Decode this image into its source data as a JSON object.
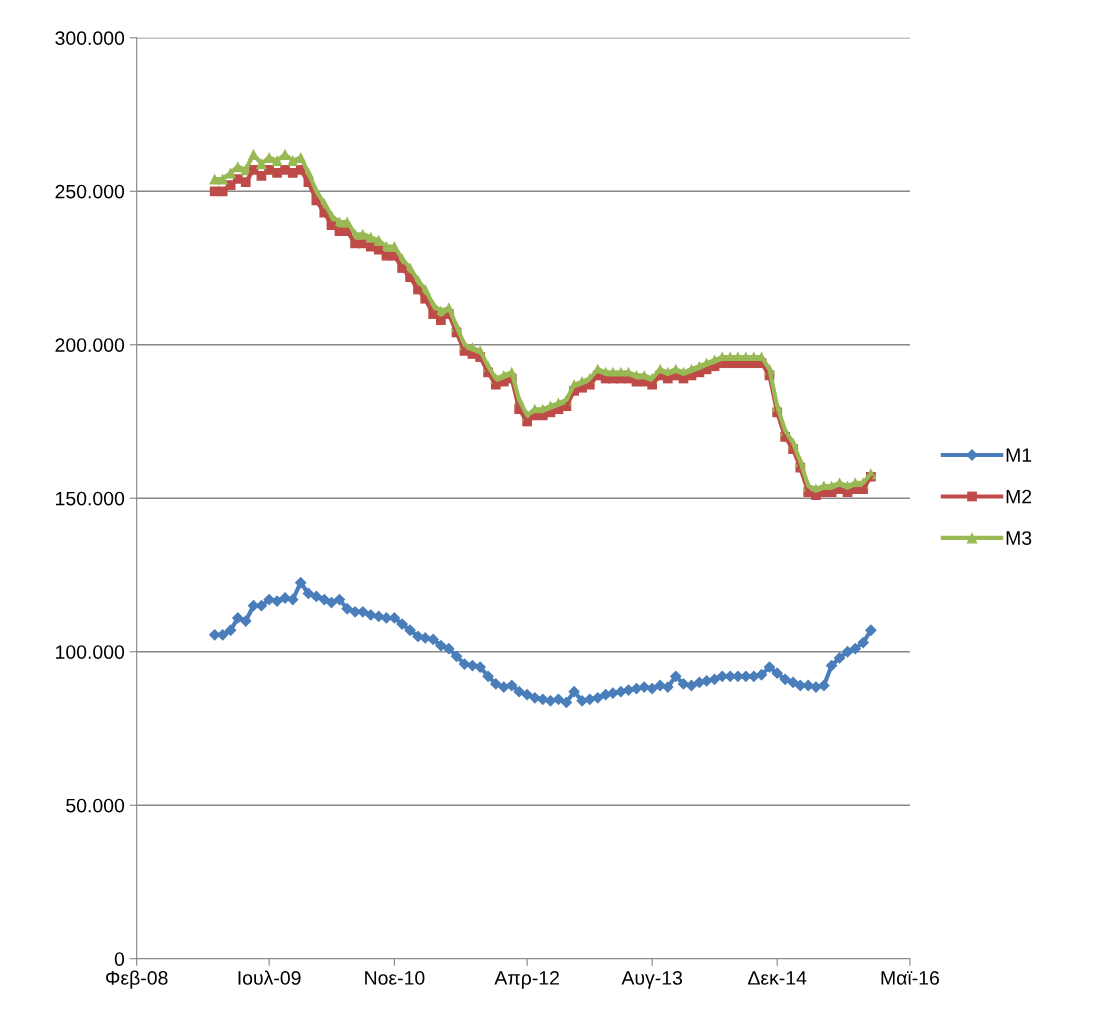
{
  "chart_data": {
    "type": "line",
    "x": [
      "2008-12",
      "2009-01",
      "2009-02",
      "2009-03",
      "2009-04",
      "2009-05",
      "2009-06",
      "2009-07",
      "2009-08",
      "2009-09",
      "2009-10",
      "2009-11",
      "2009-12",
      "2010-01",
      "2010-02",
      "2010-03",
      "2010-04",
      "2010-05",
      "2010-06",
      "2010-07",
      "2010-08",
      "2010-09",
      "2010-10",
      "2010-11",
      "2010-12",
      "2011-01",
      "2011-02",
      "2011-03",
      "2011-04",
      "2011-05",
      "2011-06",
      "2011-07",
      "2011-08",
      "2011-09",
      "2011-10",
      "2011-11",
      "2011-12",
      "2012-01",
      "2012-02",
      "2012-03",
      "2012-04",
      "2012-05",
      "2012-06",
      "2012-07",
      "2012-08",
      "2012-09",
      "2012-10",
      "2012-11",
      "2012-12",
      "2013-01",
      "2013-02",
      "2013-03",
      "2013-04",
      "2013-05",
      "2013-06",
      "2013-07",
      "2013-08",
      "2013-09",
      "2013-10",
      "2013-11",
      "2013-12",
      "2014-01",
      "2014-02",
      "2014-03",
      "2014-04",
      "2014-05",
      "2014-06",
      "2014-07",
      "2014-08",
      "2014-09",
      "2014-10",
      "2014-11",
      "2014-12",
      "2015-01",
      "2015-02",
      "2015-03",
      "2015-04",
      "2015-05",
      "2015-06",
      "2015-07",
      "2015-08",
      "2015-09",
      "2015-10",
      "2015-11",
      "2015-12"
    ],
    "series": [
      {
        "name": "M1",
        "color": "#4a7ebb",
        "marker": "diamond",
        "values": [
          105500,
          105500,
          107000,
          111000,
          110000,
          115000,
          115000,
          117000,
          116500,
          117500,
          117000,
          122500,
          119000,
          118000,
          117000,
          116000,
          117000,
          114000,
          113000,
          113000,
          112000,
          111500,
          111000,
          111000,
          109000,
          107000,
          105000,
          104500,
          104000,
          102000,
          101000,
          98500,
          96000,
          95500,
          95000,
          92000,
          89500,
          88500,
          89000,
          87000,
          86000,
          85000,
          84500,
          84000,
          84500,
          83500,
          87000,
          84000,
          84500,
          85000,
          86000,
          86500,
          87000,
          87500,
          88000,
          88500,
          88000,
          89000,
          88500,
          92000,
          89500,
          89000,
          90000,
          90500,
          91000,
          92000,
          92000,
          92000,
          92000,
          92000,
          92500,
          95000,
          93000,
          91000,
          90000,
          89000,
          89000,
          88500,
          89000,
          95500,
          98000,
          100000,
          101000,
          103000,
          107000
        ]
      },
      {
        "name": "M2",
        "color": "#be4b48",
        "marker": "square",
        "values": [
          250000,
          250000,
          252000,
          254000,
          253000,
          257000,
          255000,
          257000,
          256000,
          257000,
          256000,
          257000,
          253000,
          247000,
          243000,
          239000,
          237000,
          237000,
          233000,
          233000,
          232000,
          231000,
          229000,
          229000,
          225000,
          222000,
          218000,
          215000,
          210000,
          208000,
          210000,
          204000,
          198000,
          197000,
          196000,
          191000,
          187000,
          188000,
          189000,
          179000,
          175000,
          177000,
          177000,
          178000,
          179000,
          180000,
          185000,
          186000,
          187000,
          190000,
          189000,
          189000,
          189000,
          189000,
          188000,
          188000,
          187000,
          190000,
          189000,
          190000,
          189000,
          190000,
          191000,
          192000,
          193000,
          194000,
          194000,
          194000,
          194000,
          194000,
          194000,
          190000,
          178000,
          170000,
          166000,
          160000,
          152000,
          151000,
          152000,
          152000,
          153000,
          152000,
          153000,
          153000,
          157000
        ]
      },
      {
        "name": "M3",
        "color": "#98b954",
        "marker": "triangle",
        "values": [
          254000,
          254000,
          256000,
          258000,
          257000,
          262000,
          259000,
          261000,
          260000,
          262000,
          260000,
          261000,
          256000,
          250000,
          246000,
          242000,
          240000,
          240000,
          236000,
          236000,
          235000,
          234000,
          232000,
          232000,
          228000,
          225000,
          221000,
          218000,
          213000,
          211000,
          212000,
          206000,
          200000,
          199000,
          198000,
          193000,
          189000,
          190000,
          191000,
          182000,
          177000,
          179000,
          179000,
          180000,
          181000,
          182000,
          187000,
          188000,
          189000,
          192000,
          191000,
          191000,
          191000,
          191000,
          190000,
          190000,
          189000,
          192000,
          191000,
          192000,
          191000,
          192000,
          193000,
          194000,
          195000,
          196000,
          196000,
          196000,
          196000,
          196000,
          196000,
          192000,
          180000,
          172000,
          168000,
          162000,
          154000,
          153000,
          154000,
          154000,
          155000,
          154000,
          155000,
          155000,
          158000
        ]
      }
    ],
    "xlim": [
      "2008-02",
      "2016-05"
    ],
    "xticks": [
      {
        "value": "2008-02",
        "label": "Φεβ-08"
      },
      {
        "value": "2009-07",
        "label": "Ιουλ-09"
      },
      {
        "value": "2010-11",
        "label": "Νοε-10"
      },
      {
        "value": "2012-04",
        "label": "Απρ-12"
      },
      {
        "value": "2013-08",
        "label": "Αυγ-13"
      },
      {
        "value": "2014-12",
        "label": "Δεκ-14"
      },
      {
        "value": "2016-05",
        "label": "Μαϊ-16"
      }
    ],
    "ylim": [
      0,
      300000
    ],
    "yticks": [
      0,
      {
        "value": 50000,
        "label": "50.000"
      },
      {
        "value": 100000,
        "label": "100.000"
      },
      {
        "value": 150000,
        "label": "150.000"
      },
      {
        "value": 200000,
        "label": "200.000"
      },
      {
        "value": 250000,
        "label": "250.000"
      },
      {
        "value": 300000,
        "label": "300.000"
      }
    ],
    "grid": "y",
    "legend": "right",
    "line_style": "solid"
  }
}
